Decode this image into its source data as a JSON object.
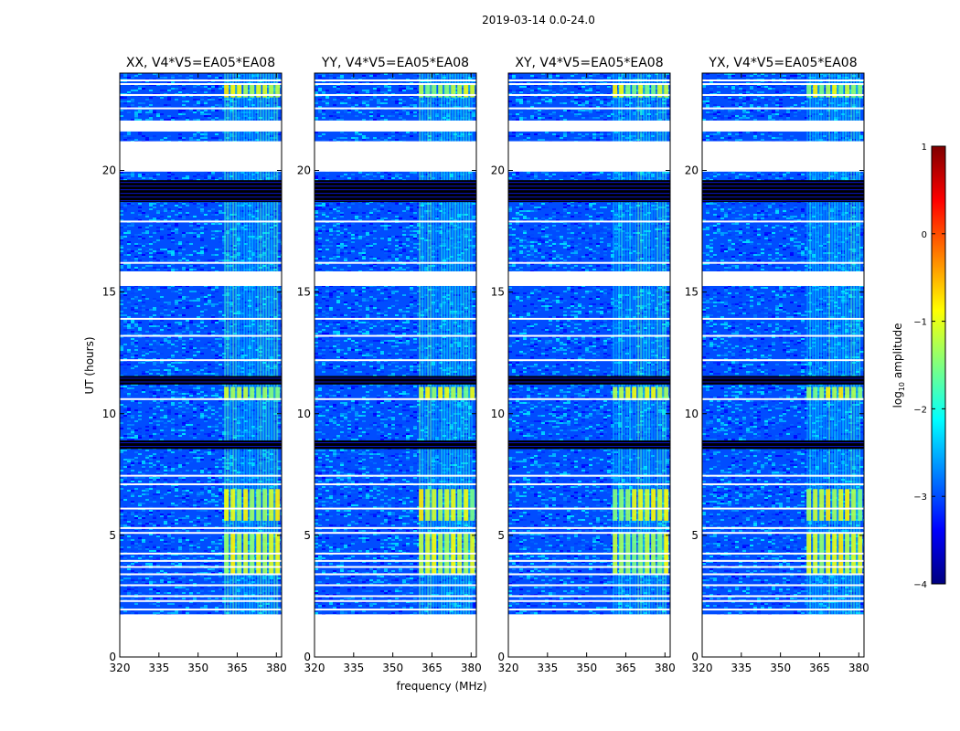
{
  "figure_title": "2019-03-14 0.0-24.0",
  "chart_data": [
    {
      "type": "heatmap",
      "title": "XX, V4*V5=EA05*EA08",
      "xlabel": "frequency (MHz)",
      "ylabel": "UT (hours)",
      "xlim": [
        320,
        382
      ],
      "ylim": [
        0,
        24
      ],
      "xticks": [
        320,
        335,
        350,
        365,
        380
      ],
      "yticks": [
        0,
        5,
        10,
        15,
        20
      ]
    },
    {
      "type": "heatmap",
      "title": "YY, V4*V5=EA05*EA08",
      "xlabel": "frequency (MHz)",
      "ylabel": "UT (hours)",
      "xlim": [
        320,
        382
      ],
      "ylim": [
        0,
        24
      ],
      "xticks": [
        320,
        335,
        350,
        365,
        380
      ],
      "yticks": [
        0,
        5,
        10,
        15,
        20
      ]
    },
    {
      "type": "heatmap",
      "title": "XY, V4*V5=EA05*EA08",
      "xlabel": "frequency (MHz)",
      "ylabel": "UT (hours)",
      "xlim": [
        320,
        382
      ],
      "ylim": [
        0,
        24
      ],
      "xticks": [
        320,
        335,
        350,
        365,
        380
      ],
      "yticks": [
        0,
        5,
        10,
        15,
        20
      ]
    },
    {
      "type": "heatmap",
      "title": "YX, V4*V5=EA05*EA08",
      "xlabel": "frequency (MHz)",
      "ylabel": "UT (hours)",
      "xlim": [
        320,
        382
      ],
      "ylim": [
        0,
        24
      ],
      "xticks": [
        320,
        335,
        350,
        365,
        380
      ],
      "yticks": [
        0,
        5,
        10,
        15,
        20
      ]
    }
  ],
  "shared_features": {
    "data_start_hour": 1.75,
    "blank_intervals_hours": [
      [
        0.0,
        1.75
      ],
      [
        15.25,
        15.85
      ],
      [
        19.95,
        21.2
      ],
      [
        21.6,
        22.05
      ]
    ],
    "flagged_black_bands_hours": [
      [
        8.55,
        8.9
      ],
      [
        11.2,
        11.55
      ],
      [
        18.7,
        19.6
      ]
    ],
    "white_gap_lines_hours": [
      1.95,
      2.3,
      2.5,
      2.95,
      3.4,
      3.7,
      3.95,
      4.25,
      5.1,
      5.3,
      6.1,
      7.1,
      7.45,
      10.6,
      12.2,
      13.2,
      13.9,
      16.2,
      17.9,
      20.35,
      22.55,
      23.1,
      23.55,
      23.7
    ],
    "rfi_band_mhz": [
      360,
      380
    ],
    "rfi_strong_hours": [
      [
        3.4,
        5.1
      ],
      [
        5.6,
        6.9
      ],
      [
        10.55,
        11.1
      ],
      [
        23.0,
        23.55
      ]
    ],
    "dominant_log_amplitude": -3.0,
    "rfi_log_amplitude": -1.3
  },
  "colorbar": {
    "label": "log10 amplitude",
    "min": -4,
    "max": 1,
    "ticks": [
      "1",
      "0",
      "−1",
      "−2",
      "−3",
      "−4"
    ],
    "colormap": "jet"
  }
}
